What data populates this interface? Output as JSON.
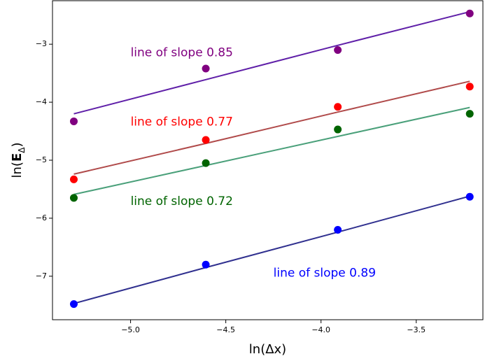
{
  "chart_data": {
    "type": "scatter",
    "xlabel": "ln(Δx)",
    "ylabel": "ln(E_Δ)",
    "ylabel_parts": {
      "prefix": "ln(",
      "main": "E",
      "sub": "Δ",
      "suffix": ")"
    },
    "xlim": [
      -5.41,
      -3.15
    ],
    "ylim": [
      -7.75,
      -2.25
    ],
    "x_ticks": [
      -5.0,
      -4.5,
      -4.0,
      -3.5
    ],
    "x_tick_labels": [
      "−5.0",
      "−4.5",
      "−4.0",
      "−3.5"
    ],
    "y_ticks": [
      -7,
      -6,
      -5,
      -4,
      -3
    ],
    "y_tick_labels": [
      "−7",
      "−6",
      "−5",
      "−4",
      "−3"
    ],
    "grid": false,
    "series": [
      {
        "color": "#800080",
        "line_color": "#5f1fa8",
        "x": [
          -5.298,
          -4.605,
          -3.912,
          -3.219
        ],
        "y": [
          -4.33,
          -3.42,
          -3.1,
          -2.47
        ],
        "fit_y": [
          -4.2,
          -3.61,
          -3.02,
          -2.44
        ]
      },
      {
        "color": "#ff0000",
        "line_color": "#b04a4a",
        "x": [
          -5.298,
          -4.605,
          -3.912,
          -3.219
        ],
        "y": [
          -5.33,
          -4.65,
          -4.08,
          -3.73
        ],
        "fit_y": [
          -5.24,
          -4.71,
          -4.17,
          -3.64
        ]
      },
      {
        "color": "#006400",
        "line_color": "#4aa07a",
        "x": [
          -5.298,
          -4.605,
          -3.912,
          -3.219
        ],
        "y": [
          -5.65,
          -5.05,
          -4.47,
          -4.2
        ],
        "fit_y": [
          -5.59,
          -5.09,
          -4.59,
          -4.09
        ]
      },
      {
        "color": "#0000ff",
        "line_color": "#30308f",
        "x": [
          -5.298,
          -4.605,
          -3.912,
          -3.219
        ],
        "y": [
          -7.48,
          -6.8,
          -6.2,
          -5.63
        ],
        "fit_y": [
          -7.47,
          -6.85,
          -6.24,
          -5.62
        ]
      }
    ],
    "annotations": [
      {
        "text": "line of slope 0.85",
        "x": -5.0,
        "y": -3.15,
        "color": "#800080"
      },
      {
        "text": "line of slope 0.77",
        "x": -5.0,
        "y": -4.34,
        "color": "#ff0000"
      },
      {
        "text": "line of slope 0.72",
        "x": -5.0,
        "y": -5.71,
        "color": "#006400"
      },
      {
        "text": "line of slope 0.89",
        "x": -4.25,
        "y": -6.95,
        "color": "#0000ff"
      }
    ]
  }
}
